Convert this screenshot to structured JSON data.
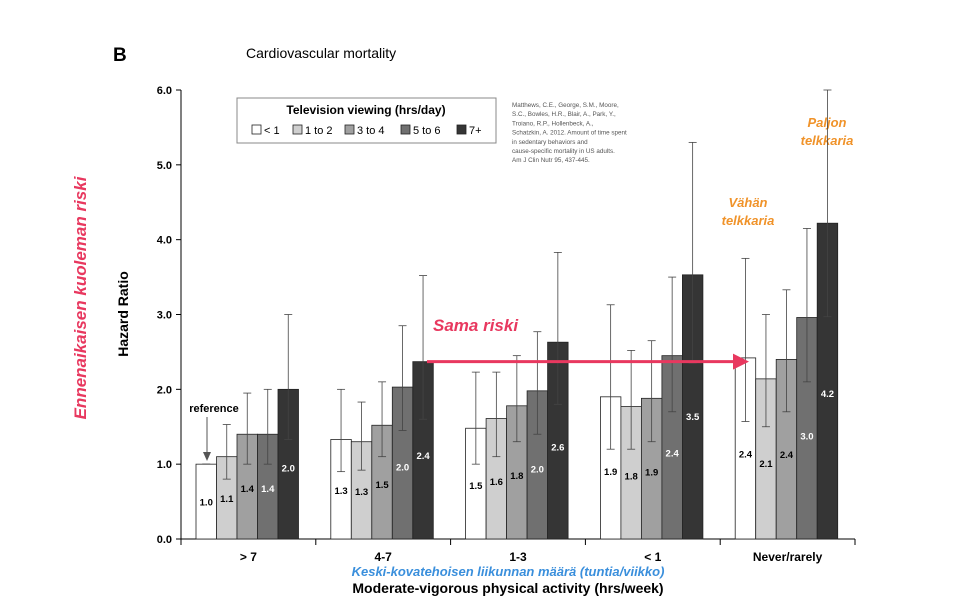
{
  "panel_label": "B",
  "chart_data": {
    "type": "bar",
    "title": "Cardiovascular mortality",
    "ylabel": "Hazard Ratio",
    "xlabel": "Moderate-vigorous physical activity (hrs/week)",
    "xlabel_translation": "Keski-kovatehoisen liikunnan määrä (tuntia/viikko)",
    "ylabel_translation": "Ennenaikaisen kuoleman riski",
    "ylim": [
      0,
      6
    ],
    "yticks": [
      "0.0",
      "1.0",
      "2.0",
      "3.0",
      "4.0",
      "5.0",
      "6.0"
    ],
    "grid": false,
    "legend_position": "top-left",
    "legend_title": "Television viewing (hrs/day)",
    "categories": [
      "> 7",
      "4-7",
      "1-3",
      "< 1",
      "Never/rarely"
    ],
    "series": [
      {
        "name": "< 1",
        "color": "#ffffff",
        "values": [
          1.0,
          1.33,
          1.48,
          1.9,
          2.42
        ],
        "labels": [
          "1.0",
          "1.3",
          "1.5",
          "1.9",
          "2.4"
        ],
        "err_low": [
          1.0,
          0.9,
          1.0,
          1.2,
          1.57
        ],
        "err_high": [
          1.0,
          2.0,
          2.23,
          3.13,
          3.75
        ]
      },
      {
        "name": "1 to 2",
        "color": "#cfcfcf",
        "values": [
          1.1,
          1.3,
          1.61,
          1.77,
          2.14
        ],
        "labels": [
          "1.1",
          "1.3",
          "1.6",
          "1.8",
          "2.1"
        ],
        "err_low": [
          0.8,
          0.92,
          1.1,
          1.2,
          1.5
        ],
        "err_high": [
          1.53,
          1.83,
          2.23,
          2.52,
          3.0
        ]
      },
      {
        "name": "3 to 4",
        "color": "#a0a0a0",
        "values": [
          1.4,
          1.52,
          1.78,
          1.88,
          2.4
        ],
        "labels": [
          "1.4",
          "1.5",
          "1.8",
          "1.9",
          "2.4"
        ],
        "err_low": [
          1.0,
          1.1,
          1.3,
          1.3,
          1.7
        ],
        "err_high": [
          1.95,
          2.1,
          2.45,
          2.65,
          3.33
        ]
      },
      {
        "name": "5 to 6",
        "color": "#707070",
        "values": [
          1.4,
          2.03,
          1.98,
          2.45,
          2.96
        ],
        "labels": [
          "1.4",
          "2.0",
          "2.0",
          "2.4",
          "3.0"
        ],
        "err_low": [
          1.0,
          1.45,
          1.4,
          1.7,
          2.1
        ],
        "err_high": [
          2.0,
          2.85,
          2.77,
          3.5,
          4.15
        ]
      },
      {
        "name": "7+",
        "color": "#353535",
        "values": [
          2.0,
          2.37,
          2.63,
          3.53,
          4.22
        ],
        "labels": [
          "2.0",
          "2.4",
          "2.6",
          "3.5",
          "4.2"
        ],
        "err_low": [
          1.33,
          1.6,
          1.8,
          2.35,
          2.97
        ],
        "err_high": [
          3.0,
          3.52,
          3.83,
          5.3,
          6.0
        ]
      }
    ],
    "annotations": {
      "reference": "reference",
      "citation": "Matthews, C.E., George, S.M., Moore, S.C., Bowles, H.R., Blair, A., Park, Y., Troiano, R.P., Hollenbeck, A., Schatzkin, A. 2012. Amount of time spent in sedentary behaviors and cause-specific mortality in US adults. Am J Clin Nutr 95, 437-445.",
      "same_risk": "Sama riski",
      "little_tv": [
        "Vähän",
        "telkkaria"
      ],
      "lots_tv": [
        "Paljon",
        "telkkaria"
      ]
    },
    "colors": {
      "orange": "#f0932a",
      "pink": "#e8385f",
      "blue": "#3a8fdc"
    }
  }
}
